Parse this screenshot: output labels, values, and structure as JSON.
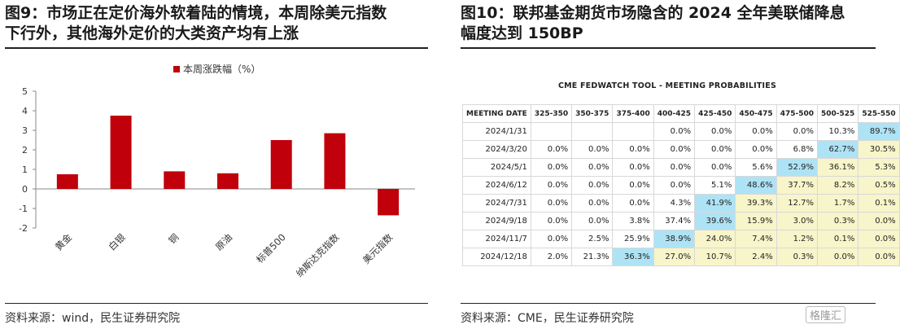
{
  "left": {
    "title_line1": "图9：市场正在定价海外软着陆的情境，本周除美元指数",
    "title_line2": "下行外，其他海外定价的大类资产均有上涨",
    "source": "资料来源：wind，民生证券研究院"
  },
  "right": {
    "title_line1": "图10：联邦基金期货市场隐含的 2024 全年美联储降息",
    "title_line2": "幅度达到 150BP",
    "source": "资料来源：CME，民生证券研究院",
    "watermark": "格隆汇"
  },
  "colors": {
    "bar": "#c0000a",
    "highlight": "#aee3f5",
    "yellow": "#f7f5c9"
  },
  "chart_data": [
    {
      "type": "bar",
      "categories": [
        "黄金",
        "白银",
        "铜",
        "原油",
        "标普500",
        "纳斯达克指数",
        "美元指数"
      ],
      "series": [
        {
          "name": "本周涨跌幅（%）",
          "values": [
            0.75,
            3.75,
            0.9,
            0.8,
            2.5,
            2.85,
            -1.35
          ]
        }
      ],
      "ylim": [
        -2,
        5
      ],
      "yticks": [
        -2,
        -1,
        0,
        1,
        2,
        3,
        4,
        5
      ],
      "legend": "top"
    },
    {
      "type": "table",
      "title": "CME FEDWATCH TOOL - MEETING PROBABILITIES",
      "columns": [
        "MEETING DATE",
        "325-350",
        "350-375",
        "375-400",
        "400-425",
        "425-450",
        "450-475",
        "475-500",
        "500-525",
        "525-550"
      ],
      "rows": [
        {
          "date": "2024/1/31",
          "values": [
            "",
            "",
            "",
            "0.0%",
            "0.0%",
            "0.0%",
            "0.0%",
            "10.3%",
            "89.7%"
          ],
          "max_index": 8
        },
        {
          "date": "2024/3/20",
          "values": [
            "0.0%",
            "0.0%",
            "0.0%",
            "0.0%",
            "0.0%",
            "0.0%",
            "6.8%",
            "62.7%",
            "30.5%"
          ],
          "max_index": 7
        },
        {
          "date": "2024/5/1",
          "values": [
            "0.0%",
            "0.0%",
            "0.0%",
            "0.0%",
            "0.0%",
            "5.6%",
            "52.9%",
            "36.1%",
            "5.3%"
          ],
          "max_index": 6
        },
        {
          "date": "2024/6/12",
          "values": [
            "0.0%",
            "0.0%",
            "0.0%",
            "0.0%",
            "5.1%",
            "48.6%",
            "37.7%",
            "8.2%",
            "0.5%"
          ],
          "max_index": 5
        },
        {
          "date": "2024/7/31",
          "values": [
            "0.0%",
            "0.0%",
            "0.0%",
            "4.3%",
            "41.9%",
            "39.3%",
            "12.7%",
            "1.7%",
            "0.1%"
          ],
          "max_index": 4
        },
        {
          "date": "2024/9/18",
          "values": [
            "0.0%",
            "0.0%",
            "3.8%",
            "37.4%",
            "39.6%",
            "15.9%",
            "3.0%",
            "0.3%",
            "0.0%"
          ],
          "max_index": 4
        },
        {
          "date": "2024/11/7",
          "values": [
            "0.0%",
            "2.5%",
            "25.9%",
            "38.9%",
            "24.0%",
            "7.4%",
            "1.2%",
            "0.1%",
            "0.0%"
          ],
          "max_index": 3
        },
        {
          "date": "2024/12/18",
          "values": [
            "2.0%",
            "21.3%",
            "36.3%",
            "27.0%",
            "10.7%",
            "2.4%",
            "0.3%",
            "0.0%",
            "0.0%"
          ],
          "max_index": 2
        }
      ]
    }
  ]
}
